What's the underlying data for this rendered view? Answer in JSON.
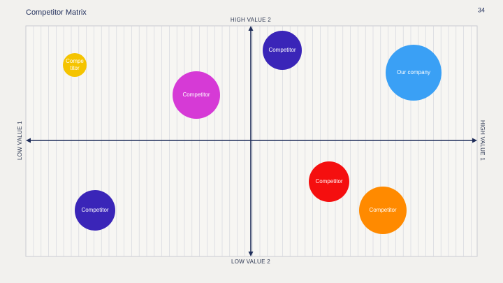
{
  "header": {
    "title": "Competitor Matrix",
    "page_number": "34"
  },
  "axes": {
    "top": "HIGH VALUE 2",
    "bottom": "LOW VALUE 2",
    "left": "LOW VALUE 1",
    "right": "HIGH VALUE 1"
  },
  "nodes": [
    {
      "lines": [
        "Compe",
        "titor"
      ]
    },
    {
      "lines": [
        "Competitor"
      ]
    },
    {
      "lines": [
        "Competitor"
      ]
    },
    {
      "lines": [
        "Our company"
      ]
    },
    {
      "lines": [
        "Competitor"
      ]
    },
    {
      "lines": [
        "Competitor"
      ]
    },
    {
      "lines": [
        "Competitor"
      ]
    }
  ]
}
